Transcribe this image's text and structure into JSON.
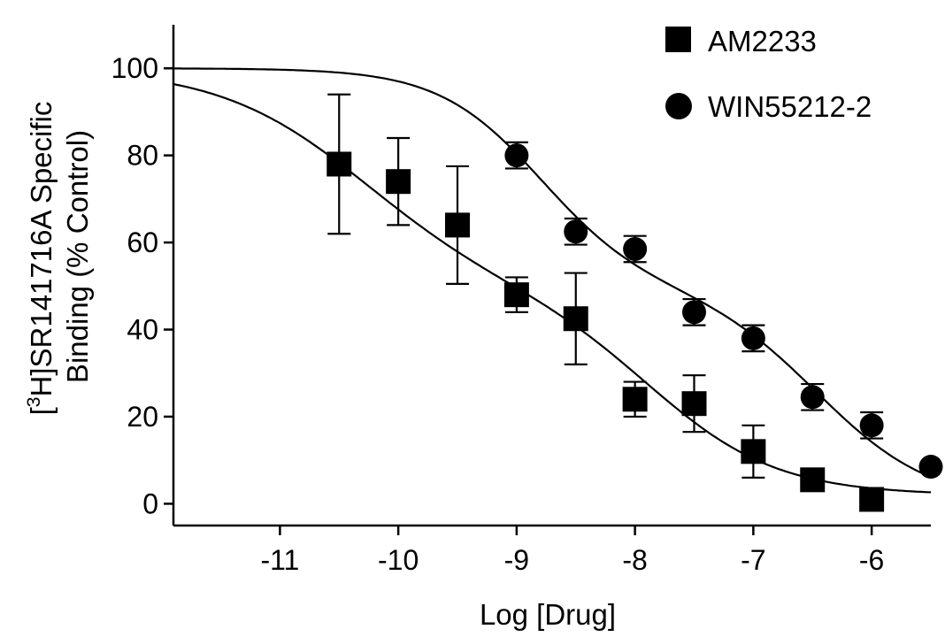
{
  "chart_data": {
    "type": "scatter",
    "title": "",
    "xlabel": "Log [Drug]",
    "ylabel_line1_prefix": "[",
    "ylabel_line1_sup": "3",
    "ylabel_line1_main": "H]SR141716A Specific",
    "ylabel_line2": "Binding (% Control)",
    "xlim": [
      -11.9,
      -5.5
    ],
    "ylim": [
      -5,
      110
    ],
    "xticks": [
      -11,
      -10,
      -9,
      -8,
      -7,
      -6
    ],
    "xtick_labels": [
      "-11",
      "-10",
      "-9",
      "-8",
      "-7",
      "-6"
    ],
    "yticks": [
      0,
      20,
      40,
      60,
      80,
      100
    ],
    "ytick_labels": [
      "0",
      "20",
      "40",
      "60",
      "80",
      "100"
    ],
    "legend_position": "top-right",
    "series": [
      {
        "name": "AM2233",
        "marker": "square",
        "color": "#000000",
        "x": [
          -10.5,
          -10.0,
          -9.5,
          -9.0,
          -8.5,
          -8.0,
          -7.5,
          -7.0,
          -6.5,
          -6.0
        ],
        "y": [
          78,
          74,
          64,
          48,
          42.5,
          24,
          23,
          12,
          5.5,
          1
        ],
        "err": [
          16,
          10,
          13.5,
          4,
          10.5,
          4,
          6.5,
          6,
          0,
          0
        ],
        "fit": {
          "top": 100,
          "bottom": 2,
          "frac": 0.52,
          "logEC50_1": -10.3,
          "logEC50_2": -7.85,
          "hill1": 0.7,
          "hill2": 0.8
        }
      },
      {
        "name": "WIN55212-2",
        "marker": "circle",
        "color": "#000000",
        "x": [
          -9.0,
          -8.5,
          -8.0,
          -7.5,
          -7.0,
          -6.5,
          -6.0,
          -5.5
        ],
        "y": [
          80,
          62.5,
          58.5,
          44,
          38,
          24.5,
          18,
          8.5
        ],
        "err": [
          3,
          3,
          3,
          3,
          3,
          3,
          3,
          0
        ],
        "fit": {
          "top": 100,
          "bottom": 0,
          "frac": 0.5,
          "logEC50_1": -8.8,
          "logEC50_2": -6.45,
          "hill1": 1.0,
          "hill2": 0.9
        }
      }
    ]
  }
}
